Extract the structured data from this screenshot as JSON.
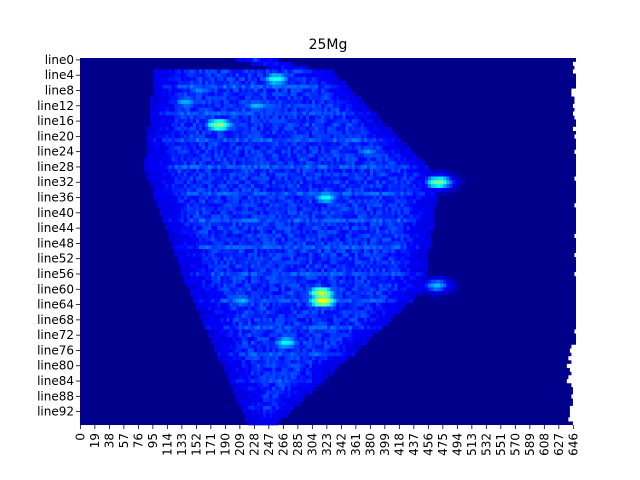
{
  "chart_data": {
    "type": "heatmap",
    "title": "25Mg",
    "xlabel": "",
    "ylabel": "",
    "rows": 96,
    "cols": 650,
    "y_tick_labels": [
      "line0",
      "line4",
      "line8",
      "line12",
      "line16",
      "line20",
      "line24",
      "line28",
      "line32",
      "line36",
      "line40",
      "line44",
      "line48",
      "line52",
      "line56",
      "line60",
      "line64",
      "line68",
      "line72",
      "line76",
      "line80",
      "line84",
      "line88",
      "line92"
    ],
    "y_tick_rows": [
      0,
      4,
      8,
      12,
      16,
      20,
      24,
      28,
      32,
      36,
      40,
      44,
      48,
      52,
      56,
      60,
      64,
      68,
      72,
      76,
      80,
      84,
      88,
      92
    ],
    "x_tick_labels": [
      "0",
      "19",
      "38",
      "57",
      "76",
      "95",
      "114",
      "133",
      "152",
      "171",
      "190",
      "209",
      "228",
      "247",
      "266",
      "285",
      "304",
      "323",
      "342",
      "361",
      "380",
      "399",
      "418",
      "437",
      "456",
      "475",
      "494",
      "513",
      "532",
      "551",
      "570",
      "589",
      "608",
      "627",
      "646"
    ],
    "x_tick_cols": [
      0,
      19,
      38,
      57,
      76,
      95,
      114,
      133,
      152,
      171,
      190,
      209,
      228,
      247,
      266,
      285,
      304,
      323,
      342,
      361,
      380,
      399,
      418,
      437,
      456,
      475,
      494,
      513,
      532,
      551,
      570,
      589,
      608,
      627,
      646
    ],
    "colormap": [
      "#00008b",
      "#0000ff",
      "#00ffff",
      "#ffff00"
    ],
    "background_color": "#00008b",
    "missing_color": "#ffffff",
    "hotspots": [
      {
        "row": 63,
        "col": 316,
        "intensity": 1.0
      },
      {
        "row": 61,
        "col": 314,
        "intensity": 0.9
      },
      {
        "row": 17,
        "col": 180,
        "intensity": 0.85
      },
      {
        "row": 32,
        "col": 468,
        "intensity": 0.8
      },
      {
        "row": 5,
        "col": 255,
        "intensity": 0.7
      },
      {
        "row": 36,
        "col": 320,
        "intensity": 0.65
      },
      {
        "row": 74,
        "col": 268,
        "intensity": 0.65
      },
      {
        "row": 11,
        "col": 137,
        "intensity": 0.55
      },
      {
        "row": 59,
        "col": 465,
        "intensity": 0.55
      },
      {
        "row": 63,
        "col": 210,
        "intensity": 0.55
      },
      {
        "row": 8,
        "col": 155,
        "intensity": 0.5
      },
      {
        "row": 12,
        "col": 230,
        "intensity": 0.55
      },
      {
        "row": 24,
        "col": 375,
        "intensity": 0.5
      }
    ],
    "grid": false,
    "legend": "none"
  }
}
